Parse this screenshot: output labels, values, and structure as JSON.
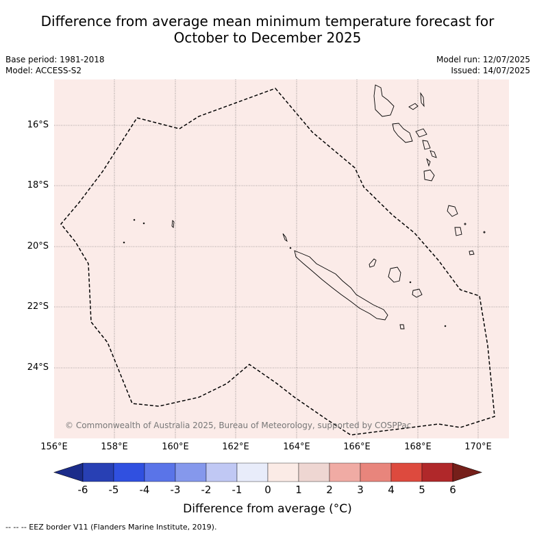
{
  "title_lines": [
    "Difference from average mean minimum temperature forecast for",
    "October to December 2025"
  ],
  "meta": {
    "base_period": "Base period: 1981-2018",
    "model": "Model: ACCESS-S2",
    "model_run": "Model run: 12/07/2025",
    "issued": "Issued: 14/07/2025"
  },
  "map": {
    "background_color": "#fbebe8",
    "latitude_labels": [
      "16°S",
      "18°S",
      "20°S",
      "22°S",
      "24°S"
    ],
    "longitude_labels": [
      "156°E",
      "158°E",
      "160°E",
      "162°E",
      "164°E",
      "166°E",
      "168°E",
      "170°E"
    ],
    "copyright": "© Commonwealth of Australia 2025, Bureau of Meteorology, supported by COSPPac"
  },
  "colorbar": {
    "labels": [
      "-6",
      "-5",
      "-4",
      "-3",
      "-2",
      "-1",
      "0",
      "1",
      "2",
      "3",
      "4",
      "5",
      "6"
    ],
    "colors": [
      "#1b2c8a",
      "#2840b4",
      "#3050e0",
      "#5a74e8",
      "#8598ec",
      "#c0c8f4",
      "#e8ecfa",
      "#fbebe6",
      "#eed6d2",
      "#f0aba4",
      "#e8857c",
      "#dd4a3e",
      "#b0282a",
      "#751f1a"
    ],
    "title": "Difference from average (°C)"
  },
  "footnote": "-- -- -- EEZ border V11 (Flanders Marine Institute, 2019)."
}
